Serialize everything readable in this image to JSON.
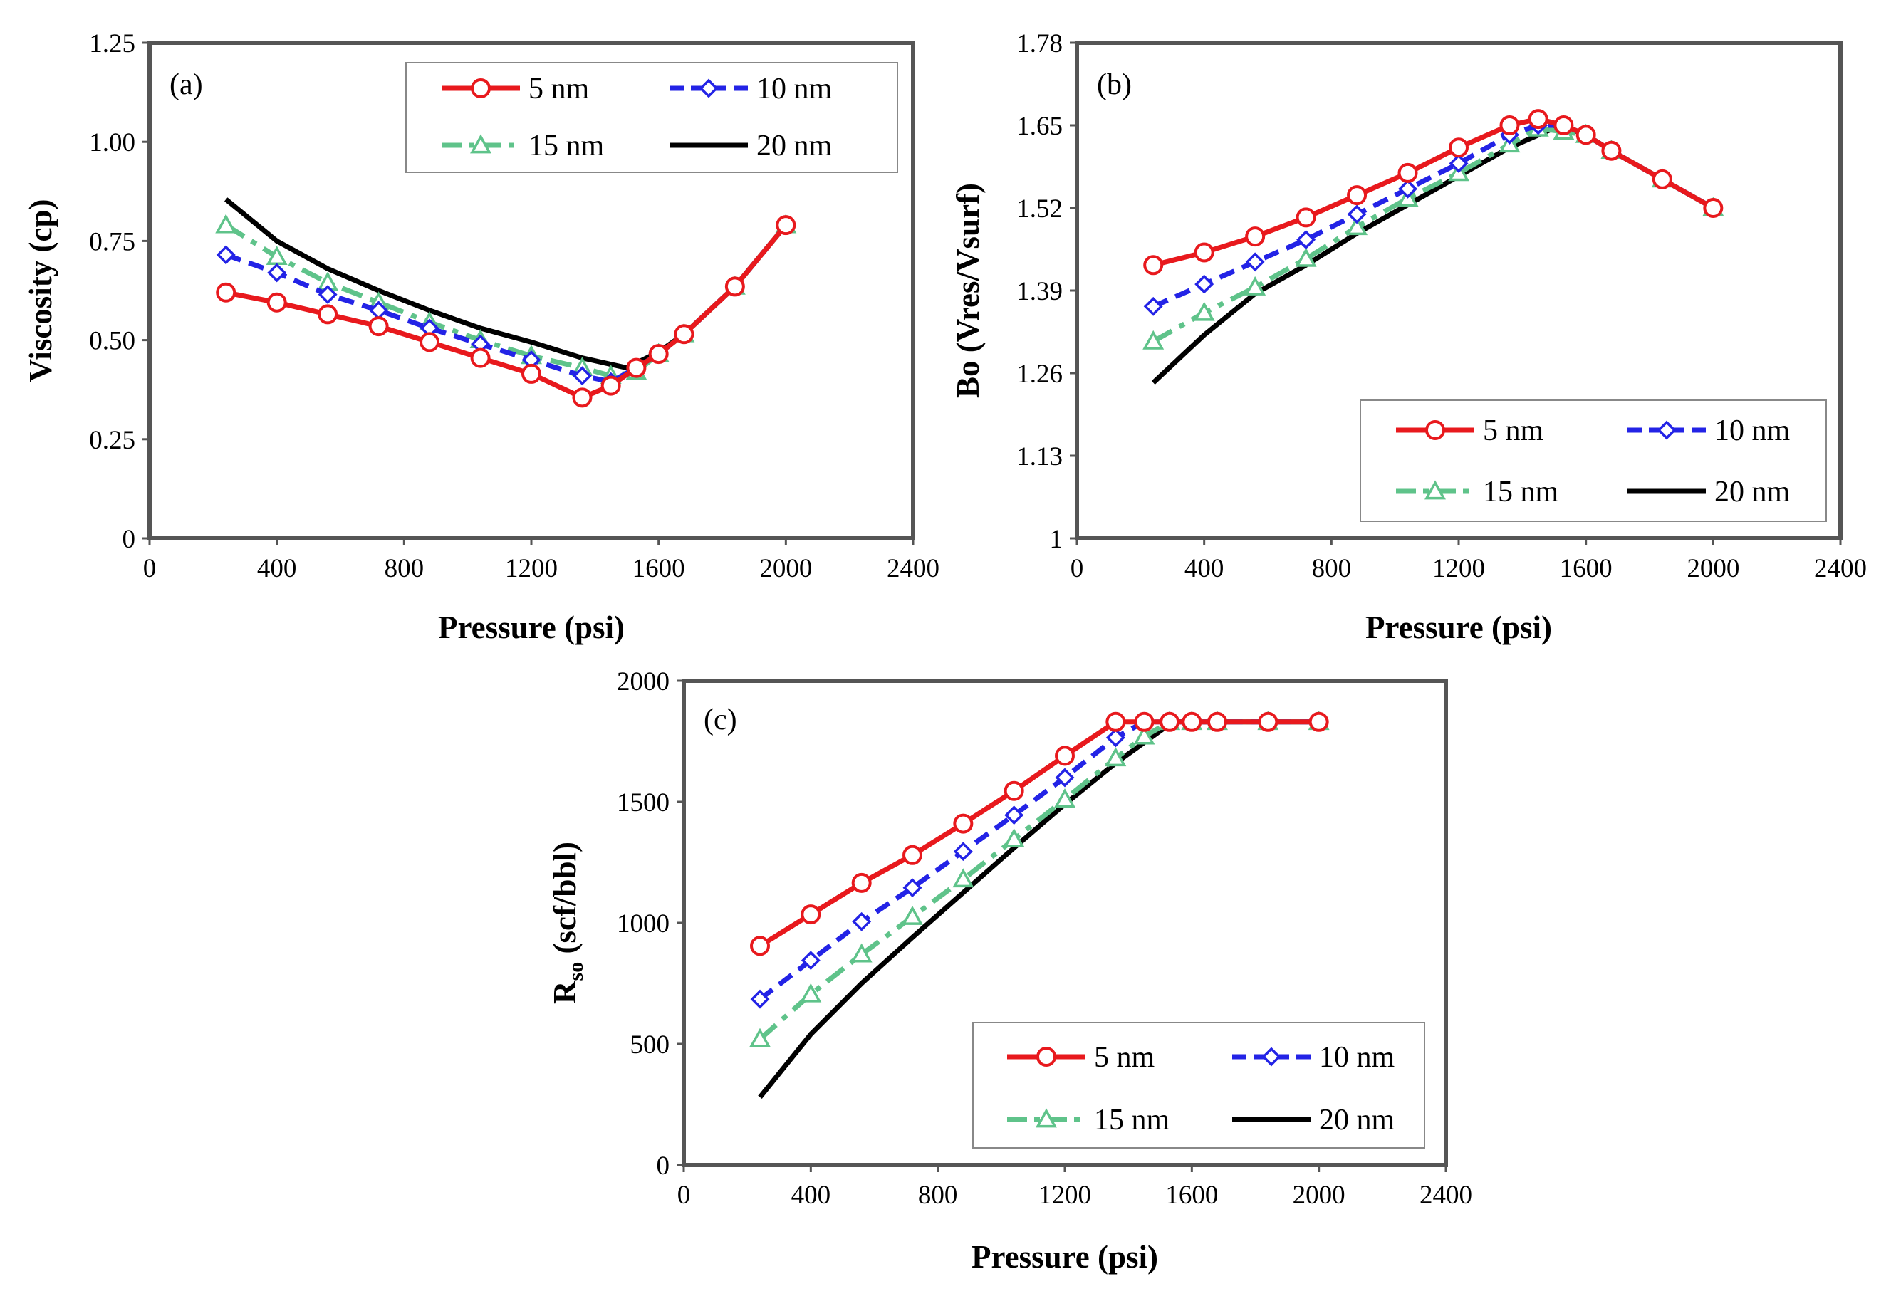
{
  "figure": {
    "background": "#ffffff"
  },
  "styles": {
    "s5": {
      "color": "#e8191d",
      "dash": "none",
      "marker": "circle"
    },
    "s10": {
      "color": "#2323e6",
      "dash": "dash",
      "marker": "diamond"
    },
    "s15": {
      "color": "#5fc38a",
      "dash": "dashdot",
      "marker": "triangle"
    },
    "s20": {
      "color": "#000000",
      "dash": "none",
      "marker": "none"
    }
  },
  "chart_data": [
    {
      "id": "a",
      "type": "line",
      "panel_label": "(a)",
      "xlabel": "Pressure (psi)",
      "ylabel": "Viscosity (cp)",
      "xlim": [
        0,
        2400
      ],
      "ylim": [
        0,
        1.25
      ],
      "xticks": [
        0,
        400,
        800,
        1200,
        1600,
        2000,
        2400
      ],
      "yticks": [
        0,
        0.25,
        0.5,
        0.75,
        1.0,
        1.25
      ],
      "xtick_labels": [
        "0",
        "400",
        "800",
        "1200",
        "1600",
        "2000",
        "2400"
      ],
      "ytick_labels": [
        "0",
        "0.25",
        "0.50",
        "0.75",
        "1.00",
        "1.25"
      ],
      "legend_position": "top-right",
      "series": [
        {
          "name": "5 nm",
          "style": "s5",
          "x": [
            240,
            400,
            560,
            720,
            880,
            1040,
            1200,
            1360,
            1450,
            1530,
            1600,
            1680,
            1840,
            2000
          ],
          "y": [
            0.62,
            0.595,
            0.565,
            0.535,
            0.495,
            0.455,
            0.415,
            0.355,
            0.385,
            0.43,
            0.465,
            0.515,
            0.635,
            0.79
          ]
        },
        {
          "name": "10 nm",
          "style": "s10",
          "x": [
            240,
            400,
            560,
            720,
            880,
            1040,
            1200,
            1360,
            1450,
            1530,
            1600,
            1680,
            1840,
            2000
          ],
          "y": [
            0.715,
            0.67,
            0.615,
            0.575,
            0.53,
            0.49,
            0.45,
            0.41,
            0.395,
            0.43,
            0.465,
            0.515,
            0.635,
            0.79
          ]
        },
        {
          "name": "15 nm",
          "style": "s15",
          "x": [
            240,
            400,
            560,
            720,
            880,
            1040,
            1200,
            1360,
            1450,
            1530,
            1600,
            1680,
            1840,
            2000
          ],
          "y": [
            0.79,
            0.71,
            0.645,
            0.595,
            0.545,
            0.5,
            0.46,
            0.43,
            0.41,
            0.42,
            0.465,
            0.515,
            0.635,
            0.79
          ]
        },
        {
          "name": "20 nm",
          "style": "s20",
          "x": [
            240,
            400,
            560,
            720,
            880,
            1040,
            1200,
            1360,
            1500,
            1600,
            1680,
            1840,
            2000
          ],
          "y": [
            0.855,
            0.75,
            0.68,
            0.625,
            0.575,
            0.53,
            0.495,
            0.455,
            0.43,
            0.47,
            0.515,
            0.635,
            0.79
          ]
        }
      ]
    },
    {
      "id": "b",
      "type": "line",
      "panel_label": "(b)",
      "xlabel": "Pressure (psi)",
      "ylabel": "Bo (Vres/Vsurf)",
      "xlim": [
        0,
        2400
      ],
      "ylim": [
        1,
        1.78
      ],
      "xticks": [
        0,
        400,
        800,
        1200,
        1600,
        2000,
        2400
      ],
      "yticks": [
        1,
        1.13,
        1.26,
        1.39,
        1.52,
        1.65,
        1.78
      ],
      "xtick_labels": [
        "0",
        "400",
        "800",
        "1200",
        "1600",
        "2000",
        "2400"
      ],
      "ytick_labels": [
        "1",
        "1.13",
        "1.26",
        "1.39",
        "1.52",
        "1.65",
        "1.78"
      ],
      "legend_position": "bottom-right",
      "series": [
        {
          "name": "5 nm",
          "style": "s5",
          "x": [
            240,
            400,
            560,
            720,
            880,
            1040,
            1200,
            1360,
            1450,
            1530,
            1600,
            1680,
            1840,
            2000
          ],
          "y": [
            1.43,
            1.45,
            1.475,
            1.505,
            1.54,
            1.575,
            1.615,
            1.65,
            1.66,
            1.65,
            1.635,
            1.61,
            1.565,
            1.52
          ]
        },
        {
          "name": "10 nm",
          "style": "s10",
          "x": [
            240,
            400,
            560,
            720,
            880,
            1040,
            1200,
            1360,
            1450,
            1530,
            1600,
            1680,
            1840,
            2000
          ],
          "y": [
            1.365,
            1.4,
            1.435,
            1.47,
            1.51,
            1.55,
            1.59,
            1.635,
            1.65,
            1.65,
            1.635,
            1.61,
            1.565,
            1.52
          ]
        },
        {
          "name": "15 nm",
          "style": "s15",
          "x": [
            240,
            400,
            560,
            720,
            880,
            1040,
            1200,
            1360,
            1450,
            1530,
            1600,
            1680,
            1840,
            2000
          ],
          "y": [
            1.31,
            1.355,
            1.395,
            1.44,
            1.49,
            1.535,
            1.575,
            1.62,
            1.645,
            1.64,
            1.635,
            1.61,
            1.565,
            1.52
          ]
        },
        {
          "name": "20 nm",
          "style": "s20",
          "x": [
            240,
            400,
            560,
            720,
            880,
            1040,
            1200,
            1360,
            1520,
            1600,
            1680,
            1840,
            2000
          ],
          "y": [
            1.245,
            1.32,
            1.385,
            1.43,
            1.48,
            1.525,
            1.57,
            1.615,
            1.65,
            1.635,
            1.61,
            1.565,
            1.52
          ]
        }
      ]
    },
    {
      "id": "c",
      "type": "line",
      "panel_label": "(c)",
      "xlabel": "Pressure (psi)",
      "ylabel": "Rso (scf/bbl)",
      "ylabel_main": "R",
      "ylabel_sub": "so",
      "ylabel_rest": " (scf/bbl)",
      "xlim": [
        0,
        2400
      ],
      "ylim": [
        0,
        2000
      ],
      "xticks": [
        0,
        400,
        800,
        1200,
        1600,
        2000,
        2400
      ],
      "yticks": [
        0,
        500,
        1000,
        1500,
        2000
      ],
      "xtick_labels": [
        "0",
        "400",
        "800",
        "1200",
        "1600",
        "2000",
        "2400"
      ],
      "ytick_labels": [
        "0",
        "500",
        "1000",
        "1500",
        "2000"
      ],
      "legend_position": "bottom-right",
      "series": [
        {
          "name": "5 nm",
          "style": "s5",
          "x": [
            240,
            400,
            560,
            720,
            880,
            1040,
            1200,
            1360,
            1450,
            1530,
            1600,
            1680,
            1840,
            2000
          ],
          "y": [
            905,
            1035,
            1165,
            1280,
            1410,
            1545,
            1690,
            1830,
            1830,
            1830,
            1830,
            1830,
            1830,
            1830
          ]
        },
        {
          "name": "10 nm",
          "style": "s10",
          "x": [
            240,
            400,
            560,
            720,
            880,
            1040,
            1200,
            1360,
            1450,
            1530,
            1600,
            1680,
            1840,
            2000
          ],
          "y": [
            685,
            845,
            1005,
            1145,
            1295,
            1445,
            1600,
            1765,
            1830,
            1830,
            1830,
            1830,
            1830,
            1830
          ]
        },
        {
          "name": "15 nm",
          "style": "s15",
          "x": [
            240,
            400,
            560,
            720,
            880,
            1040,
            1200,
            1360,
            1450,
            1530,
            1600,
            1680,
            1840,
            2000
          ],
          "y": [
            520,
            705,
            870,
            1025,
            1180,
            1345,
            1510,
            1680,
            1770,
            1830,
            1830,
            1830,
            1830,
            1830
          ]
        },
        {
          "name": "20 nm",
          "style": "s20",
          "x": [
            240,
            400,
            560,
            720,
            880,
            1040,
            1200,
            1360,
            1540,
            1600,
            1680,
            1840,
            2000
          ],
          "y": [
            280,
            540,
            750,
            940,
            1125,
            1310,
            1490,
            1660,
            1830,
            1830,
            1830,
            1830,
            1830
          ]
        }
      ]
    }
  ]
}
